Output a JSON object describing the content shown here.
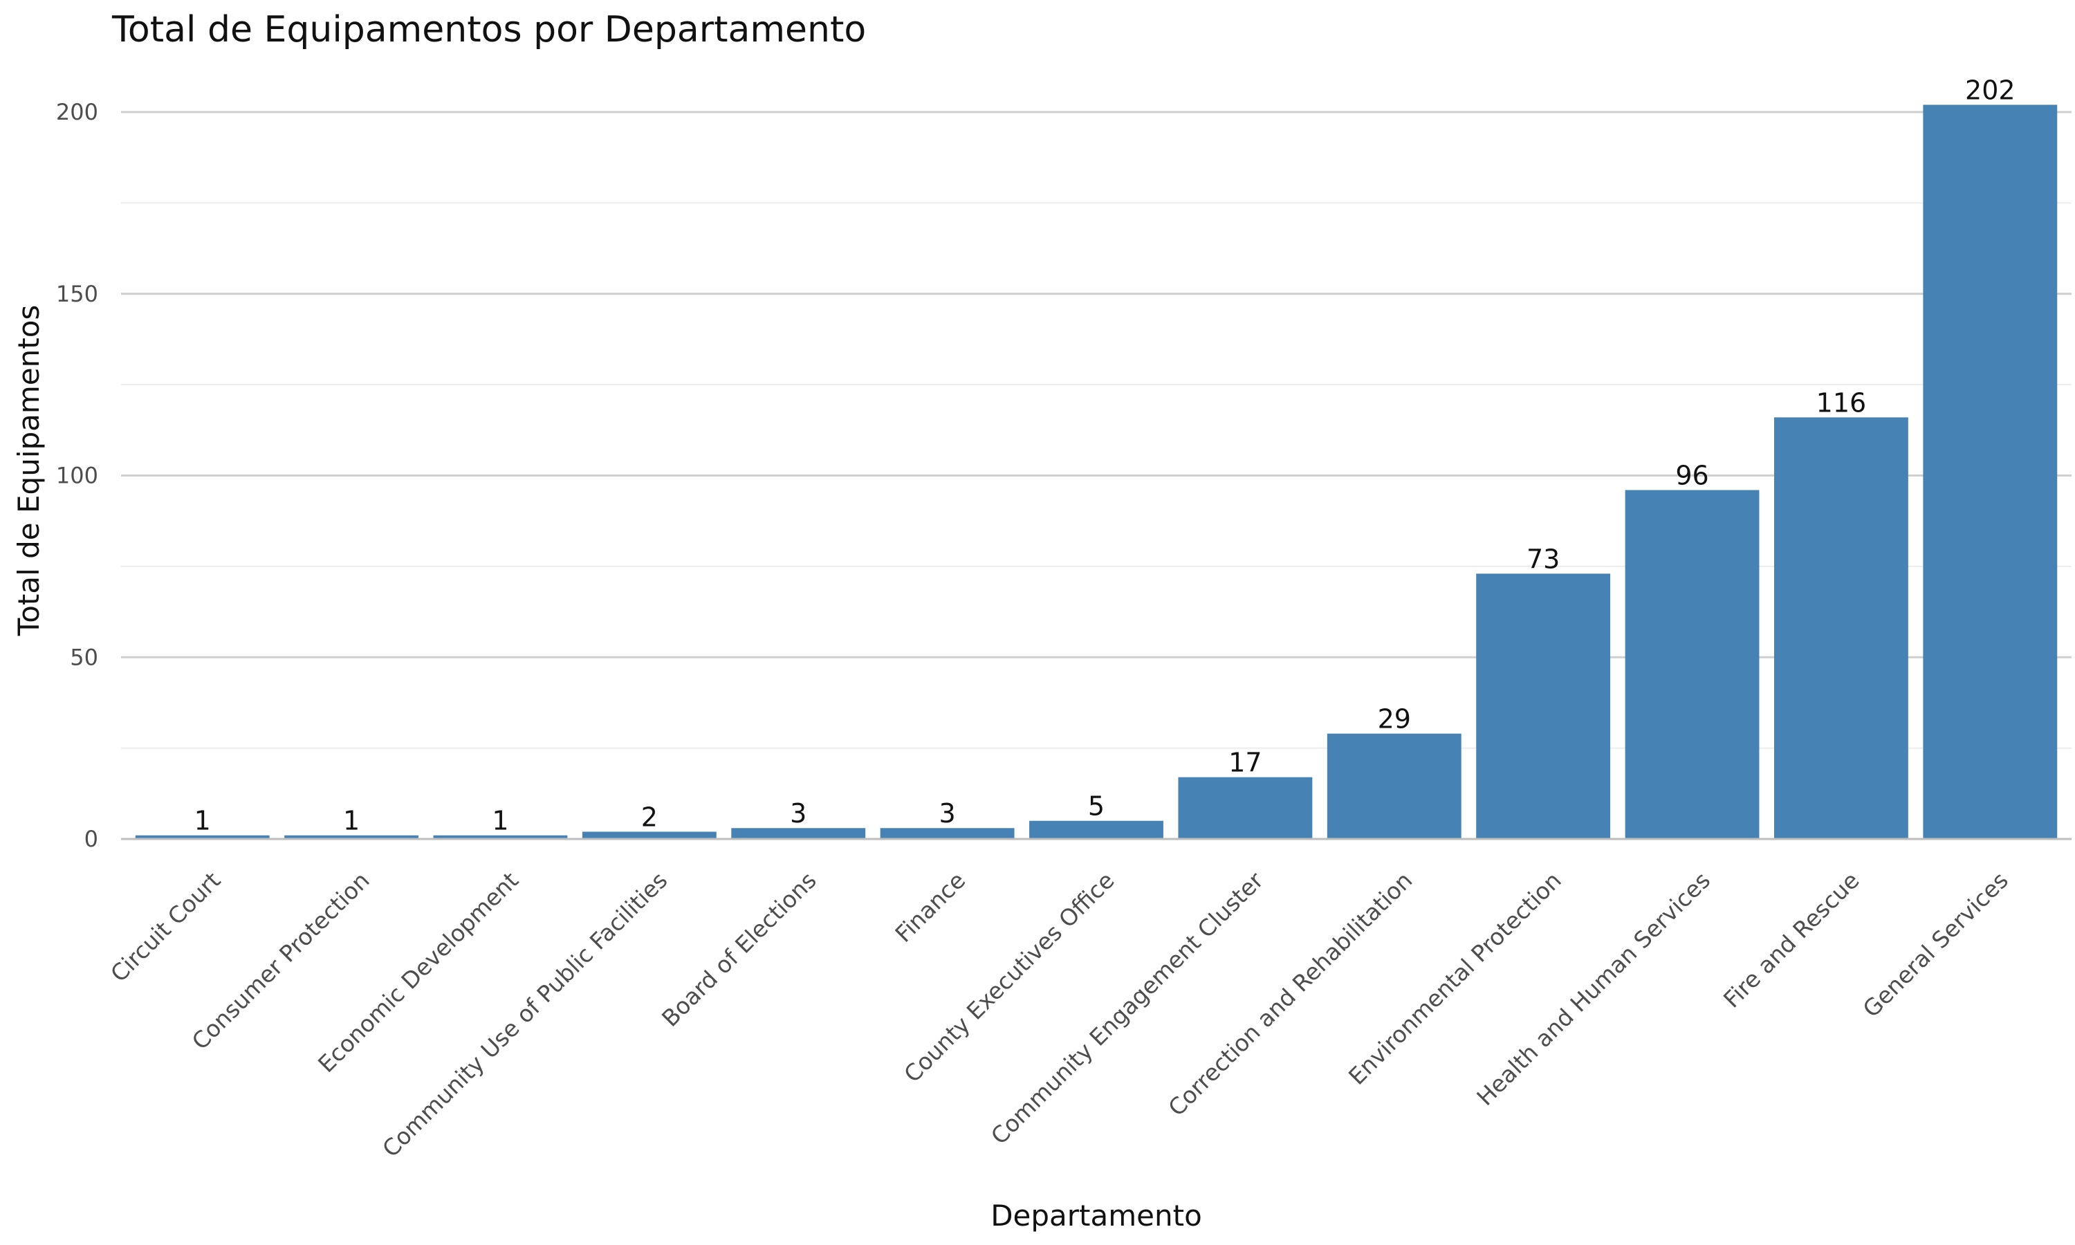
{
  "chart_data": {
    "type": "bar",
    "title": "Total de Equipamentos por Departamento",
    "xlabel": "Departamento",
    "ylabel": "Total de Equipamentos",
    "categories": [
      "Circuit Court",
      "Consumer Protection",
      "Economic Development",
      "Community Use of Public Facilities",
      "Board of Elections",
      "Finance",
      "County Executives Office",
      "Community Engagement Cluster",
      "Correction and Rehabilitation",
      "Environmental Protection",
      "Health and Human Services",
      "Fire and Rescue",
      "General Services"
    ],
    "values": [
      1,
      1,
      1,
      2,
      3,
      3,
      5,
      17,
      29,
      73,
      96,
      116,
      202
    ],
    "ylim": [
      0,
      202
    ],
    "yticks": [
      0,
      50,
      100,
      150,
      200
    ],
    "grid": true,
    "bar_color": "#4682B4",
    "legend": "none"
  }
}
